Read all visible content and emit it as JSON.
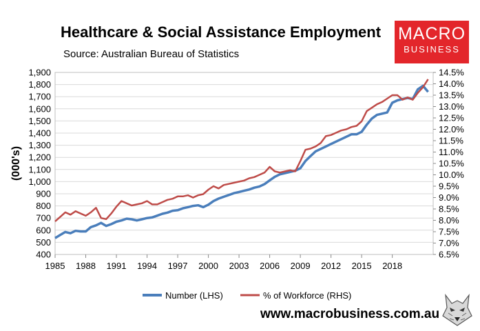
{
  "title": "Healthcare & Social Assistance Employment",
  "source": "Source: Australian Bureau of Statistics",
  "logo": {
    "line1": "MACRO",
    "line2": "BUSINESS"
  },
  "website": "www.macrobusiness.com.au",
  "colors": {
    "number": "#4a7ebb",
    "percent": "#be4b48",
    "logo_bg": "#e3262b",
    "grid": "#d9d9d9"
  },
  "chart_data": {
    "type": "line",
    "ylabel": "(000's)",
    "x_ticks": [
      "1985",
      "1988",
      "1991",
      "1994",
      "1997",
      "2000",
      "2003",
      "2006",
      "2009",
      "2012",
      "2015",
      "2018"
    ],
    "y_left": {
      "min": 400,
      "max": 1900,
      "step": 100,
      "ticks": [
        "400",
        "500",
        "600",
        "700",
        "800",
        "900",
        "1,000",
        "1,100",
        "1,200",
        "1,300",
        "1,400",
        "1,500",
        "1,600",
        "1,700",
        "1,800",
        "1,900"
      ]
    },
    "y_right": {
      "min": 6.5,
      "max": 14.5,
      "step": 0.5,
      "ticks": [
        "6.5%",
        "7.0%",
        "7.5%",
        "8.0%",
        "8.5%",
        "9.0%",
        "9.5%",
        "10.0%",
        "10.5%",
        "11.0%",
        "11.5%",
        "12.0%",
        "12.5%",
        "13.0%",
        "13.5%",
        "14.0%",
        "14.5%"
      ]
    },
    "x_range": [
      1985,
      2022
    ],
    "legend_position": "bottom",
    "grid": true,
    "series": [
      {
        "name": "Number (LHS)",
        "axis": "left",
        "color": "#4a7ebb",
        "x": [
          1985,
          1985.5,
          1986,
          1986.5,
          1987,
          1987.5,
          1988,
          1988.5,
          1989,
          1989.5,
          1990,
          1990.5,
          1991,
          1991.5,
          1992,
          1992.5,
          1993,
          1993.5,
          1994,
          1994.5,
          1995,
          1995.5,
          1996,
          1996.5,
          1997,
          1997.5,
          1998,
          1998.5,
          1999,
          1999.5,
          2000,
          2000.5,
          2001,
          2001.5,
          2002,
          2002.5,
          2003,
          2003.5,
          2004,
          2004.5,
          2005,
          2005.5,
          2006,
          2006.5,
          2007,
          2007.5,
          2008,
          2008.5,
          2009,
          2009.5,
          2010,
          2010.5,
          2011,
          2011.5,
          2012,
          2012.5,
          2013,
          2013.5,
          2014,
          2014.5,
          2015,
          2015.5,
          2016,
          2016.5,
          2017,
          2017.5,
          2018,
          2018.5,
          2019,
          2019.5,
          2020,
          2020.5,
          2021,
          2021.5
        ],
        "y": [
          535,
          560,
          585,
          575,
          595,
          590,
          590,
          625,
          640,
          660,
          635,
          650,
          670,
          680,
          695,
          690,
          680,
          690,
          700,
          705,
          720,
          735,
          745,
          760,
          765,
          780,
          790,
          800,
          805,
          790,
          810,
          840,
          860,
          875,
          890,
          905,
          915,
          925,
          935,
          950,
          960,
          980,
          1010,
          1040,
          1060,
          1070,
          1080,
          1090,
          1110,
          1170,
          1210,
          1250,
          1270,
          1290,
          1310,
          1330,
          1350,
          1370,
          1390,
          1390,
          1410,
          1470,
          1520,
          1550,
          1560,
          1570,
          1650,
          1670,
          1680,
          1690,
          1680,
          1760,
          1790,
          1740
        ]
      },
      {
        "name": "% of Workforce (RHS)",
        "axis": "right",
        "color": "#be4b48",
        "x": [
          1985,
          1985.5,
          1986,
          1986.5,
          1987,
          1987.5,
          1988,
          1988.5,
          1989,
          1989.5,
          1990,
          1990.5,
          1991,
          1991.5,
          1992,
          1992.5,
          1993,
          1993.5,
          1994,
          1994.5,
          1995,
          1995.5,
          1996,
          1996.5,
          1997,
          1997.5,
          1998,
          1998.5,
          1999,
          1999.5,
          2000,
          2000.5,
          2001,
          2001.5,
          2002,
          2002.5,
          2003,
          2003.5,
          2004,
          2004.5,
          2005,
          2005.5,
          2006,
          2006.5,
          2007,
          2007.5,
          2008,
          2008.5,
          2009,
          2009.5,
          2010,
          2010.5,
          2011,
          2011.5,
          2012,
          2012.5,
          2013,
          2013.5,
          2014,
          2014.5,
          2015,
          2015.5,
          2016,
          2016.5,
          2017,
          2017.5,
          2018,
          2018.5,
          2019,
          2019.5,
          2020,
          2020.5,
          2021,
          2021.5
        ],
        "y": [
          7.95,
          8.15,
          8.35,
          8.25,
          8.4,
          8.3,
          8.2,
          8.35,
          8.55,
          8.1,
          8.05,
          8.3,
          8.6,
          8.85,
          8.75,
          8.65,
          8.7,
          8.75,
          8.85,
          8.7,
          8.7,
          8.8,
          8.9,
          8.95,
          9.05,
          9.05,
          9.1,
          9.0,
          9.1,
          9.15,
          9.35,
          9.5,
          9.4,
          9.55,
          9.6,
          9.65,
          9.7,
          9.75,
          9.85,
          9.9,
          10.0,
          10.1,
          10.35,
          10.15,
          10.1,
          10.15,
          10.2,
          10.15,
          10.6,
          11.1,
          11.15,
          11.25,
          11.4,
          11.7,
          11.75,
          11.85,
          11.95,
          12.0,
          12.1,
          12.15,
          12.35,
          12.8,
          12.95,
          13.1,
          13.2,
          13.35,
          13.5,
          13.5,
          13.3,
          13.4,
          13.3,
          13.6,
          13.85,
          14.2
        ]
      }
    ]
  }
}
